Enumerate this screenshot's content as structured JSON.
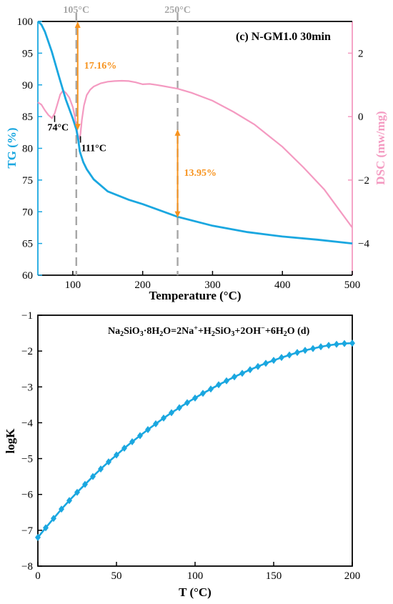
{
  "colors": {
    "tg": "#1aa7e0",
    "dsc": "#f49ac1",
    "orange": "#f7931e",
    "gray": "#a6a6a6",
    "logk": "#1aa7e0",
    "black": "#000000"
  },
  "chart_data": [
    {
      "type": "line",
      "panel_label": "(c) N-GM1.0 30min",
      "xlabel": "Temperature (°C)",
      "ylabel": "TG (%)",
      "y2label": "DSC (mw/mg)",
      "xlim": [
        50,
        500
      ],
      "ylim": [
        60,
        100
      ],
      "y2lim": [
        -5,
        3
      ],
      "x_ticks": [
        "100",
        "200",
        "300",
        "400",
        "500"
      ],
      "y_ticks": [
        "60",
        "65",
        "70",
        "75",
        "80",
        "85",
        "90",
        "95",
        "100"
      ],
      "y2_ticks": [
        "-4",
        "-2",
        "0",
        "2"
      ],
      "series": [
        {
          "axis": "left",
          "color": "tg",
          "x": [
            50,
            55,
            60,
            70,
            80,
            90,
            100,
            105,
            108,
            110,
            115,
            120,
            130,
            150,
            180,
            200,
            250,
            300,
            350,
            400,
            450,
            500
          ],
          "y": [
            100,
            99.5,
            98.4,
            95.2,
            91.4,
            87.7,
            84.7,
            83.0,
            81.2,
            79.5,
            77.8,
            76.7,
            75.1,
            73.2,
            71.9,
            71.2,
            69.2,
            67.8,
            66.8,
            66.1,
            65.6,
            65.0
          ]
        },
        {
          "axis": "right",
          "color": "dsc",
          "x": [
            50,
            55,
            60,
            65,
            70,
            74,
            78,
            82,
            86,
            90,
            95,
            100,
            103,
            105,
            107,
            109,
            111,
            113,
            116,
            120,
            125,
            130,
            140,
            150,
            160,
            170,
            180,
            190,
            200,
            210,
            220,
            230,
            240,
            250,
            270,
            300,
            330,
            360,
            400,
            430,
            460,
            480,
            500
          ],
          "y": [
            0.45,
            0.38,
            0.2,
            0.05,
            -0.05,
            0.1,
            0.4,
            0.7,
            0.82,
            0.75,
            0.6,
            0.3,
            0.0,
            -0.3,
            -0.55,
            -0.72,
            -0.55,
            -0.1,
            0.35,
            0.68,
            0.85,
            0.95,
            1.05,
            1.1,
            1.12,
            1.13,
            1.12,
            1.08,
            1.02,
            1.03,
            1.0,
            0.96,
            0.92,
            0.88,
            0.75,
            0.5,
            0.15,
            -0.25,
            -0.95,
            -1.6,
            -2.3,
            -2.9,
            -3.5
          ]
        }
      ],
      "vlines": [
        {
          "x": 105,
          "label": "105°C"
        },
        {
          "x": 250,
          "label": "250°C"
        }
      ],
      "point_labels": [
        {
          "text": "74°C",
          "x": 74
        },
        {
          "text": "111°C",
          "x": 111
        }
      ],
      "mass_loss": [
        {
          "x": 107,
          "from": 100,
          "to": 82.84,
          "label": "17.16%"
        },
        {
          "x": 250,
          "from": 83.0,
          "to": 69.05,
          "label": "13.95%"
        }
      ]
    },
    {
      "type": "line",
      "title_parts": [
        {
          "t": "Na"
        },
        {
          "t": "2",
          "s": "sub"
        },
        {
          "t": "SiO"
        },
        {
          "t": "3",
          "s": "sub"
        },
        {
          "t": "·8H"
        },
        {
          "t": "2",
          "s": "sub"
        },
        {
          "t": "O=2Na"
        },
        {
          "t": "+",
          "s": "sup"
        },
        {
          "t": "+H"
        },
        {
          "t": "2",
          "s": "sub"
        },
        {
          "t": "SiO"
        },
        {
          "t": "3",
          "s": "sub"
        },
        {
          "t": "+2OH"
        },
        {
          "t": "−",
          "s": "sup"
        },
        {
          "t": "+6H"
        },
        {
          "t": "2",
          "s": "sub"
        },
        {
          "t": "O  (d)"
        }
      ],
      "xlabel": "T (°C)",
      "ylabel": "logK",
      "xlim": [
        0,
        200
      ],
      "ylim": [
        -8,
        -1
      ],
      "x_ticks": [
        "0",
        "50",
        "100",
        "150",
        "200"
      ],
      "y_ticks": [
        "-8",
        "-7",
        "-6",
        "-5",
        "-4",
        "-3",
        "-2",
        "-1"
      ],
      "series": [
        {
          "color": "logk",
          "marker": "diamond",
          "x": [
            0,
            5,
            10,
            15,
            20,
            25,
            30,
            35,
            40,
            45,
            50,
            55,
            60,
            65,
            70,
            75,
            80,
            85,
            90,
            95,
            100,
            105,
            110,
            115,
            120,
            125,
            130,
            135,
            140,
            145,
            150,
            155,
            160,
            165,
            170,
            175,
            180,
            185,
            190,
            195,
            200
          ],
          "y": [
            -7.2,
            -6.93,
            -6.67,
            -6.41,
            -6.17,
            -5.94,
            -5.72,
            -5.5,
            -5.29,
            -5.09,
            -4.9,
            -4.71,
            -4.53,
            -4.36,
            -4.19,
            -4.03,
            -3.87,
            -3.72,
            -3.58,
            -3.44,
            -3.31,
            -3.18,
            -3.06,
            -2.94,
            -2.83,
            -2.72,
            -2.62,
            -2.52,
            -2.43,
            -2.34,
            -2.26,
            -2.18,
            -2.11,
            -2.04,
            -1.98,
            -1.93,
            -1.88,
            -1.84,
            -1.81,
            -1.79,
            -1.78
          ]
        }
      ]
    }
  ]
}
